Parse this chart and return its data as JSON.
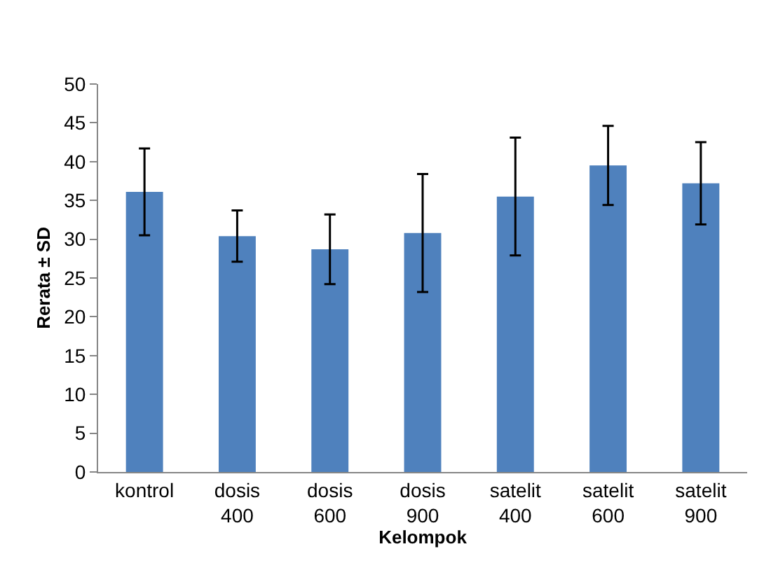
{
  "chart_data": {
    "type": "bar",
    "categories": [
      "kontrol",
      "dosis\n400",
      "dosis\n600",
      "dosis\n900",
      "satelit\n400",
      "satelit\n600",
      "satelit\n900"
    ],
    "values": [
      36.1,
      30.4,
      28.7,
      30.8,
      35.5,
      39.5,
      37.2
    ],
    "errors": [
      5.6,
      3.3,
      4.5,
      7.6,
      7.6,
      5.1,
      5.3
    ],
    "color": "#4f81bd",
    "xlabel": "Kelompok",
    "ylabel": "Rerata ± SD",
    "ylim": [
      0,
      50
    ],
    "yticks": [
      0,
      5,
      10,
      15,
      20,
      25,
      30,
      35,
      40,
      45,
      50
    ]
  }
}
